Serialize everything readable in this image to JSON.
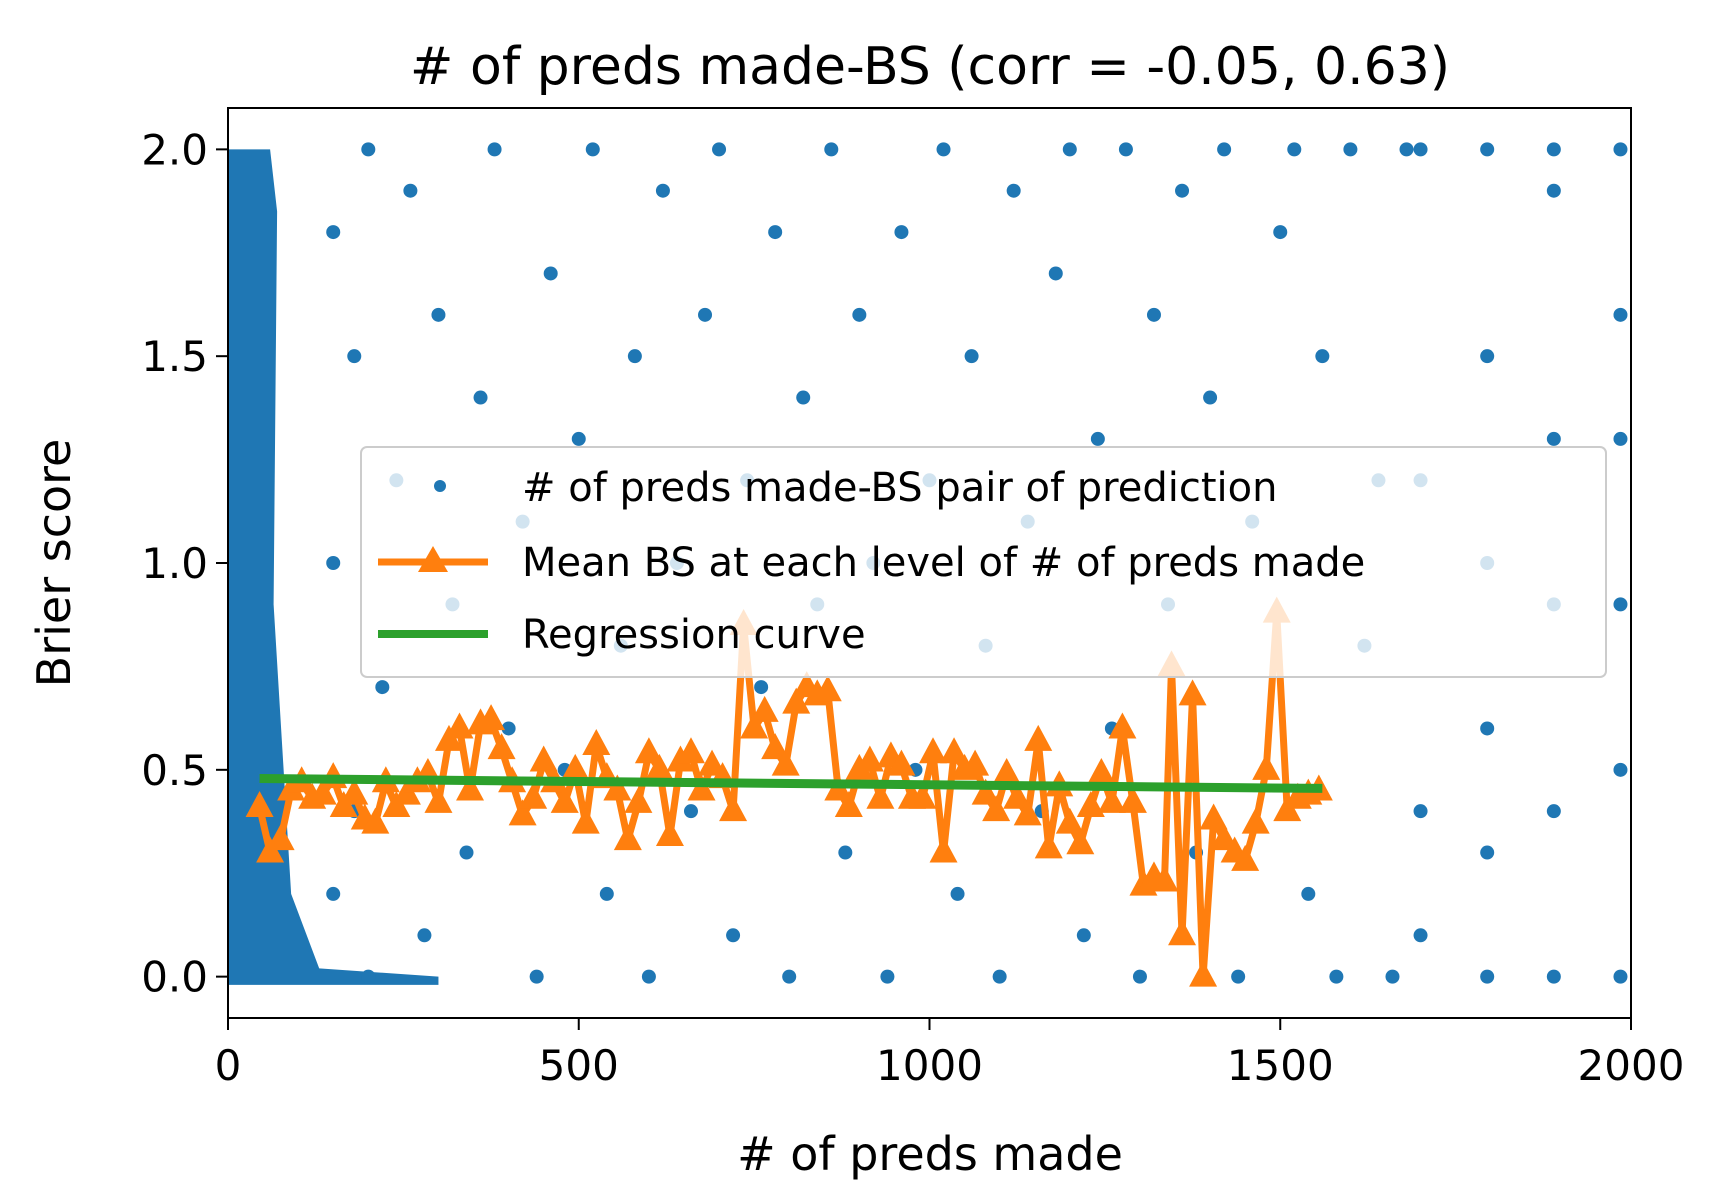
{
  "chart_data": {
    "type": "scatter",
    "title": "# of preds made-BS (corr = -0.05, 0.63)",
    "xlabel": "# of preds made",
    "ylabel": "Brier score",
    "xlim": [
      0,
      2000
    ],
    "ylim": [
      -0.1,
      2.1
    ],
    "xticks": [
      0,
      500,
      1000,
      1500,
      2000
    ],
    "xtick_labels": [
      "0",
      "500",
      "1000",
      "1500",
      "2000"
    ],
    "yticks": [
      0.0,
      0.5,
      1.0,
      1.5,
      2.0
    ],
    "ytick_labels": [
      "0.0",
      "0.5",
      "1.0",
      "1.5",
      "2.0"
    ],
    "grid": false,
    "legend_position": "center-right",
    "series": [
      {
        "name": "# of preds made-BS pair of prediction",
        "kind": "scatter",
        "color": "#1f77b4",
        "points": [
          [
            150,
            0.2
          ],
          [
            150,
            1.0
          ],
          [
            150,
            1.8
          ],
          [
            180,
            0.4
          ],
          [
            180,
            1.5
          ],
          [
            200,
            0.0
          ],
          [
            200,
            2.0
          ],
          [
            220,
            0.7
          ],
          [
            240,
            1.2
          ],
          [
            260,
            1.9
          ],
          [
            280,
            0.1
          ],
          [
            300,
            1.6
          ],
          [
            320,
            0.9
          ],
          [
            340,
            0.3
          ],
          [
            360,
            1.4
          ],
          [
            380,
            2.0
          ],
          [
            400,
            0.6
          ],
          [
            420,
            1.1
          ],
          [
            440,
            0.0
          ],
          [
            460,
            1.7
          ],
          [
            480,
            0.5
          ],
          [
            500,
            1.3
          ],
          [
            520,
            2.0
          ],
          [
            540,
            0.2
          ],
          [
            560,
            0.8
          ],
          [
            580,
            1.5
          ],
          [
            600,
            0.0
          ],
          [
            620,
            1.9
          ],
          [
            640,
            1.0
          ],
          [
            660,
            0.4
          ],
          [
            680,
            1.6
          ],
          [
            700,
            2.0
          ],
          [
            720,
            0.1
          ],
          [
            740,
            1.2
          ],
          [
            760,
            0.7
          ],
          [
            780,
            1.8
          ],
          [
            800,
            0.0
          ],
          [
            820,
            1.4
          ],
          [
            840,
            0.9
          ],
          [
            860,
            2.0
          ],
          [
            880,
            0.3
          ],
          [
            900,
            1.6
          ],
          [
            920,
            1.0
          ],
          [
            940,
            0.0
          ],
          [
            960,
            1.8
          ],
          [
            980,
            0.5
          ],
          [
            1000,
            1.2
          ],
          [
            1020,
            2.0
          ],
          [
            1040,
            0.2
          ],
          [
            1060,
            1.5
          ],
          [
            1080,
            0.8
          ],
          [
            1100,
            0.0
          ],
          [
            1120,
            1.9
          ],
          [
            1140,
            1.1
          ],
          [
            1160,
            0.4
          ],
          [
            1180,
            1.7
          ],
          [
            1200,
            2.0
          ],
          [
            1220,
            0.1
          ],
          [
            1240,
            1.3
          ],
          [
            1260,
            0.6
          ],
          [
            1280,
            2.0
          ],
          [
            1300,
            0.0
          ],
          [
            1320,
            1.6
          ],
          [
            1340,
            0.9
          ],
          [
            1360,
            1.9
          ],
          [
            1380,
            0.3
          ],
          [
            1400,
            1.4
          ],
          [
            1420,
            2.0
          ],
          [
            1440,
            0.0
          ],
          [
            1460,
            1.1
          ],
          [
            1480,
            0.5
          ],
          [
            1500,
            1.8
          ],
          [
            1520,
            2.0
          ],
          [
            1540,
            0.2
          ],
          [
            1560,
            1.5
          ],
          [
            1580,
            0.0
          ],
          [
            1600,
            2.0
          ],
          [
            1620,
            0.8
          ],
          [
            1640,
            1.2
          ],
          [
            1660,
            0.0
          ],
          [
            1680,
            2.0
          ],
          [
            1700,
            0.1
          ],
          [
            1700,
            0.4
          ],
          [
            1700,
            1.2
          ],
          [
            1700,
            2.0
          ],
          [
            1795,
            0.0
          ],
          [
            1795,
            0.3
          ],
          [
            1795,
            0.6
          ],
          [
            1795,
            1.0
          ],
          [
            1795,
            1.5
          ],
          [
            1795,
            2.0
          ],
          [
            1890,
            0.0
          ],
          [
            1890,
            0.4
          ],
          [
            1890,
            0.9
          ],
          [
            1890,
            1.3
          ],
          [
            1890,
            1.9
          ],
          [
            1890,
            2.0
          ],
          [
            1985,
            0.0
          ],
          [
            1985,
            0.5
          ],
          [
            1985,
            0.9
          ],
          [
            1985,
            1.3
          ],
          [
            1985,
            1.6
          ],
          [
            1985,
            2.0
          ]
        ]
      },
      {
        "name": "Mean BS at each level of # of preds made",
        "kind": "line-marker",
        "color": "#ff7f0e",
        "points": [
          [
            45,
            0.41
          ],
          [
            60,
            0.3
          ],
          [
            75,
            0.33
          ],
          [
            90,
            0.45
          ],
          [
            105,
            0.47
          ],
          [
            120,
            0.43
          ],
          [
            135,
            0.44
          ],
          [
            150,
            0.48
          ],
          [
            165,
            0.41
          ],
          [
            180,
            0.44
          ],
          [
            195,
            0.38
          ],
          [
            210,
            0.37
          ],
          [
            225,
            0.47
          ],
          [
            240,
            0.41
          ],
          [
            255,
            0.44
          ],
          [
            270,
            0.47
          ],
          [
            285,
            0.49
          ],
          [
            300,
            0.42
          ],
          [
            315,
            0.57
          ],
          [
            330,
            0.6
          ],
          [
            345,
            0.45
          ],
          [
            360,
            0.61
          ],
          [
            375,
            0.62
          ],
          [
            390,
            0.55
          ],
          [
            405,
            0.47
          ],
          [
            420,
            0.39
          ],
          [
            435,
            0.43
          ],
          [
            450,
            0.52
          ],
          [
            465,
            0.47
          ],
          [
            480,
            0.42
          ],
          [
            495,
            0.5
          ],
          [
            510,
            0.37
          ],
          [
            525,
            0.56
          ],
          [
            540,
            0.48
          ],
          [
            555,
            0.45
          ],
          [
            570,
            0.33
          ],
          [
            585,
            0.42
          ],
          [
            600,
            0.54
          ],
          [
            615,
            0.5
          ],
          [
            630,
            0.34
          ],
          [
            645,
            0.52
          ],
          [
            660,
            0.54
          ],
          [
            675,
            0.45
          ],
          [
            690,
            0.51
          ],
          [
            705,
            0.48
          ],
          [
            720,
            0.4
          ],
          [
            735,
            0.85
          ],
          [
            750,
            0.6
          ],
          [
            765,
            0.64
          ],
          [
            780,
            0.55
          ],
          [
            795,
            0.51
          ],
          [
            810,
            0.66
          ],
          [
            825,
            0.7
          ],
          [
            840,
            0.68
          ],
          [
            855,
            0.69
          ],
          [
            870,
            0.45
          ],
          [
            885,
            0.41
          ],
          [
            900,
            0.5
          ],
          [
            915,
            0.52
          ],
          [
            930,
            0.43
          ],
          [
            945,
            0.53
          ],
          [
            960,
            0.51
          ],
          [
            975,
            0.43
          ],
          [
            990,
            0.43
          ],
          [
            1005,
            0.54
          ],
          [
            1020,
            0.3
          ],
          [
            1035,
            0.54
          ],
          [
            1050,
            0.5
          ],
          [
            1065,
            0.51
          ],
          [
            1080,
            0.44
          ],
          [
            1095,
            0.4
          ],
          [
            1110,
            0.49
          ],
          [
            1125,
            0.43
          ],
          [
            1140,
            0.39
          ],
          [
            1155,
            0.57
          ],
          [
            1170,
            0.31
          ],
          [
            1185,
            0.46
          ],
          [
            1200,
            0.37
          ],
          [
            1215,
            0.32
          ],
          [
            1230,
            0.41
          ],
          [
            1245,
            0.49
          ],
          [
            1260,
            0.42
          ],
          [
            1275,
            0.6
          ],
          [
            1290,
            0.42
          ],
          [
            1305,
            0.22
          ],
          [
            1320,
            0.24
          ],
          [
            1335,
            0.23
          ],
          [
            1345,
            0.75
          ],
          [
            1360,
            0.1
          ],
          [
            1375,
            0.68
          ],
          [
            1390,
            0.0
          ],
          [
            1405,
            0.38
          ],
          [
            1420,
            0.33
          ],
          [
            1435,
            0.3
          ],
          [
            1450,
            0.28
          ],
          [
            1465,
            0.37
          ],
          [
            1480,
            0.5
          ],
          [
            1495,
            0.88
          ],
          [
            1510,
            0.4
          ],
          [
            1525,
            0.43
          ],
          [
            1540,
            0.44
          ],
          [
            1555,
            0.45
          ]
        ]
      },
      {
        "name": "Regression curve",
        "kind": "line",
        "color": "#2ca02c",
        "points": [
          [
            45,
            0.479
          ],
          [
            1560,
            0.455
          ]
        ]
      }
    ]
  },
  "legend": {
    "items": [
      {
        "label": "# of preds made-BS pair of prediction"
      },
      {
        "label": "Mean BS at each level of # of preds made"
      },
      {
        "label": "Regression curve"
      }
    ]
  }
}
